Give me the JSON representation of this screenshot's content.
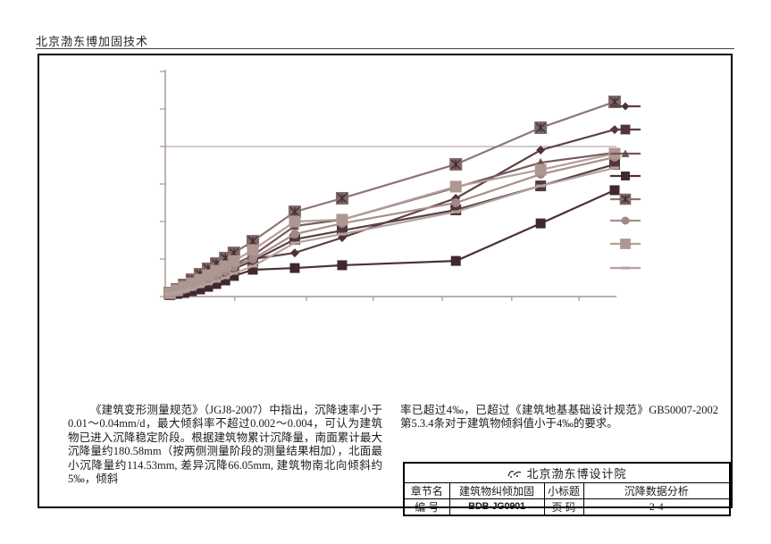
{
  "page": {
    "header": "北京渤东博加固技术"
  },
  "chart_data": {
    "type": "line",
    "title": "",
    "xlabel": "",
    "ylabel": "",
    "note": "axes have tick marks but no numeric labels; settlement values (mm) estimated from grid spacing, x expressed as percent of time axis",
    "xlim": [
      0,
      100
    ],
    "ylim": [
      0,
      120
    ],
    "x": [
      1.0,
      2.6,
      4.2,
      5.9,
      7.7,
      9.5,
      11.3,
      13.3,
      15.2,
      19.4,
      28.7,
      39.2,
      64.4,
      83.2,
      99.6
    ],
    "x_ticks_frac": [
      15.4,
      31.3,
      46.1,
      61.4,
      76.8,
      91.7
    ],
    "y_ticks_mm": [
      0,
      20,
      40,
      60,
      80,
      100,
      120
    ],
    "gridlines_mm": [
      80
    ],
    "grid": "single horizontal gridline",
    "legend_position": "right",
    "legend_labels_visible": false,
    "axis_color": "#a39590",
    "series": [
      {
        "name": "series-diamond",
        "marker": "diamond",
        "color": "#4d323c",
        "line_color": "#5d4046",
        "values": [
          1.4,
          1.9,
          2.9,
          4.3,
          5.7,
          7.6,
          10.0,
          12.9,
          16.2,
          20.0,
          23.3,
          31.4,
          52.4,
          78.1,
          89.0
        ]
      },
      {
        "name": "series-square-dark",
        "marker": "square",
        "color": "#52363e",
        "line_color": "#5a3e44",
        "values": [
          1.0,
          1.9,
          2.9,
          4.3,
          5.7,
          7.6,
          9.5,
          11.9,
          14.8,
          19.0,
          30.5,
          35.2,
          46.2,
          59.0,
          70.5
        ]
      },
      {
        "name": "series-triangle",
        "marker": "triangle",
        "color": "#6a4e52",
        "line_color": "#77595c",
        "values": [
          1.4,
          2.4,
          3.8,
          5.7,
          7.6,
          9.5,
          11.9,
          14.3,
          17.1,
          21.9,
          37.6,
          41.0,
          58.1,
          71.4,
          76.7
        ]
      },
      {
        "name": "series-square-darkest",
        "marker": "square",
        "color": "#41282f",
        "line_color": "#4a3138",
        "values": [
          1.0,
          1.4,
          1.9,
          2.9,
          3.8,
          5.2,
          6.7,
          8.6,
          11.0,
          14.3,
          15.2,
          16.7,
          19.0,
          39.0,
          56.7
        ]
      },
      {
        "name": "series-asterisk",
        "marker": "asterisk",
        "color": "#7f6a68",
        "hatch_color": "#422c34",
        "line_color": "#8d7672",
        "values": [
          1.9,
          3.8,
          6.2,
          9.0,
          11.9,
          14.8,
          17.6,
          20.5,
          23.3,
          29.5,
          45.2,
          52.4,
          70.5,
          90.0,
          103.8
        ]
      },
      {
        "name": "series-circle",
        "marker": "circle",
        "color": "#a18885",
        "line_color": "#a88f8b",
        "values": [
          1.4,
          2.4,
          3.8,
          5.2,
          7.1,
          9.0,
          11.0,
          13.3,
          15.7,
          20.0,
          33.3,
          39.0,
          50.0,
          65.2,
          74.3
        ]
      },
      {
        "name": "series-square-light",
        "marker": "square",
        "color": "#ac9792",
        "line_color": "#b39e98",
        "values": [
          1.9,
          3.3,
          5.2,
          7.1,
          9.0,
          11.4,
          13.8,
          16.2,
          19.0,
          24.8,
          40.0,
          41.0,
          58.6,
          67.6,
          76.2
        ]
      },
      {
        "name": "series-dash",
        "marker": "dash",
        "color": "#b5a29d",
        "line_color": "#b5a29d",
        "values": [
          1.4,
          1.9,
          2.9,
          3.8,
          5.2,
          6.7,
          8.1,
          10.0,
          12.4,
          16.2,
          28.6,
          33.3,
          45.2,
          59.0,
          68.6
        ]
      }
    ]
  },
  "body": {
    "left_column": "《建筑变形测量规范》（JGJ8-2007）中指出，沉降速率小于0.01～0.04mm/d，最大倾斜率不超过0.002～0.004，可认为建筑物已进入沉降稳定阶段。根据建筑物累计沉降量，南面累计最大沉降量约180.58mm（按两侧测量阶段的测量结果相加），北面最小沉降量约114.53mm, 差异沉降66.05mm, 建筑物南北向倾斜约5‰，倾斜",
    "right_column": "率已超过4‰，已超过《建筑地基基础设计规范》GB50007-2002第5.3.4条对于建筑物倾斜值小于4‰的要求。"
  },
  "title_block": {
    "company": "北京渤东博设计院",
    "chapter_label": "章节名",
    "chapter_value": "建筑物纠倾加固",
    "subtitle_label": "小标题",
    "subtitle_value": "沉降数据分析",
    "number_label": "编  号",
    "number_value": "BDB-JG0901",
    "page_label": "页  码",
    "page_value": "2-4"
  }
}
